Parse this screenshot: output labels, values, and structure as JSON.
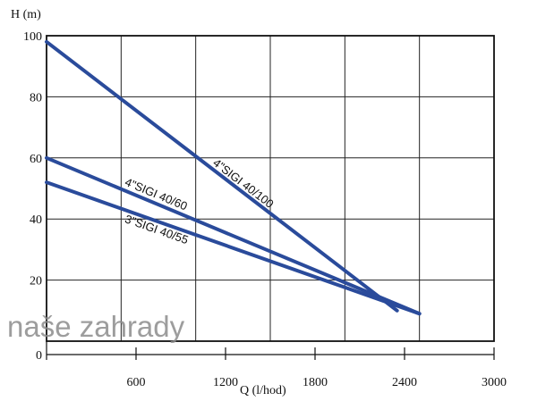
{
  "chart_data": {
    "type": "line",
    "title": "",
    "xlabel": "Q (l/hod)",
    "ylabel": "H (m)",
    "xlim": [
      0,
      3000
    ],
    "ylim": [
      0,
      100
    ],
    "x_ticks": [
      "600",
      "1200",
      "1800",
      "2400",
      "3000"
    ],
    "y_ticks": [
      "0",
      "20",
      "40",
      "60",
      "80",
      "100"
    ],
    "grid": true,
    "legend": "none",
    "line_color": "#2a4b9b",
    "series": [
      {
        "name": "4\"SIGI 40/100",
        "x": [
          0,
          2350
        ],
        "y": [
          98,
          10
        ]
      },
      {
        "name": "4\"SIGI 40/60",
        "x": [
          0,
          2500
        ],
        "y": [
          60,
          9
        ]
      },
      {
        "name": "3\"SIGI 40/55",
        "x": [
          0,
          2500
        ],
        "y": [
          52,
          9
        ]
      }
    ]
  },
  "watermark": "naše zahrady"
}
